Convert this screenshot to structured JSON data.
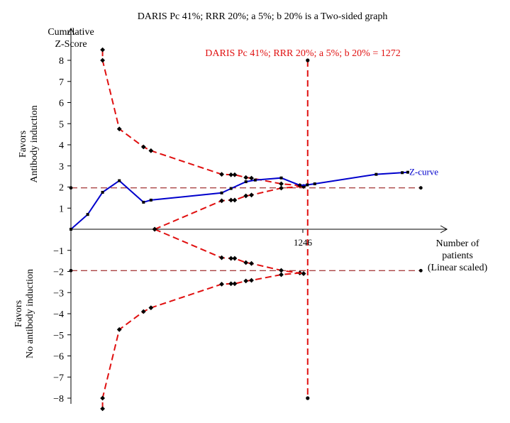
{
  "chart_data": {
    "type": "line",
    "title": "DARIS Pc 41%; RRR 20%; a 5%; b 20% is a Two-sided graph",
    "ylabel_lines": [
      "Cumulative",
      "Z-Score"
    ],
    "xlabel_lines": [
      "Number of",
      "patients",
      "(Linear scaled)"
    ],
    "favors_top": [
      "Favors",
      "Antibody induction"
    ],
    "favors_bottom": [
      "Favors",
      "No antibody induction"
    ],
    "ylim": [
      -8,
      8
    ],
    "yticks": [
      8,
      7,
      6,
      5,
      4,
      3,
      2,
      1,
      -1,
      -2,
      -3,
      -4,
      -5,
      -6,
      -7,
      -8
    ],
    "ytick_labels": [
      "8",
      "7",
      "6",
      "5",
      "4",
      "3",
      "2",
      "1",
      "−1",
      "−2",
      "−3",
      "−4",
      "−5",
      "−6",
      "−7",
      "−8"
    ],
    "xlim": [
      0,
      2020
    ],
    "xtick_value": 1246,
    "xtick_label": "1246",
    "ris_value": 1272,
    "ris_label": "DARIS Pc 41%; RRR 20%; a 5%; b 20% = 1272",
    "conventional_boundary": 1.96,
    "conventional_extent": [
      0,
      1880
    ],
    "z_curve": {
      "name": "Z-curve",
      "x": [
        0,
        90,
        170,
        260,
        390,
        430,
        810,
        860,
        940,
        990,
        1130,
        1230,
        1270,
        1310,
        1640,
        1780,
        1810
      ],
      "y": [
        0,
        0.7,
        1.75,
        2.3,
        1.28,
        1.38,
        1.72,
        1.93,
        2.25,
        2.33,
        2.43,
        2.08,
        2.1,
        2.15,
        2.6,
        2.68,
        2.7
      ]
    },
    "upper_boundary": {
      "x": [
        170,
        170,
        260,
        390,
        430,
        810,
        860,
        880,
        940,
        970,
        1130,
        1230,
        1250
      ],
      "y": [
        8.5,
        8,
        4.75,
        3.9,
        3.72,
        2.6,
        2.58,
        2.58,
        2.45,
        2.42,
        2.15,
        2.07,
        2.03
      ]
    },
    "lower_boundary": {
      "x": [
        170,
        170,
        260,
        390,
        430,
        810,
        860,
        880,
        940,
        970,
        1130,
        1230,
        1250
      ],
      "y": [
        -8.5,
        -8,
        -4.75,
        -3.9,
        -3.72,
        -2.6,
        -2.58,
        -2.58,
        -2.45,
        -2.42,
        -2.15,
        -2.07,
        -2.1
      ]
    },
    "inner_upper": {
      "x": [
        450,
        810,
        860,
        880,
        940,
        970,
        1130,
        1250
      ],
      "y": [
        0,
        1.35,
        1.38,
        1.38,
        1.58,
        1.62,
        1.95,
        2.03
      ]
    },
    "inner_lower": {
      "x": [
        450,
        810,
        860,
        880,
        940,
        970,
        1130,
        1250
      ],
      "y": [
        0,
        -1.35,
        -1.38,
        -1.38,
        -1.58,
        -1.62,
        -1.95,
        -2.1
      ]
    },
    "colors": {
      "z_curve": "#0000cc",
      "boundaries": "#e01010",
      "conventional": "#8b0000",
      "axes": "#000000"
    }
  }
}
